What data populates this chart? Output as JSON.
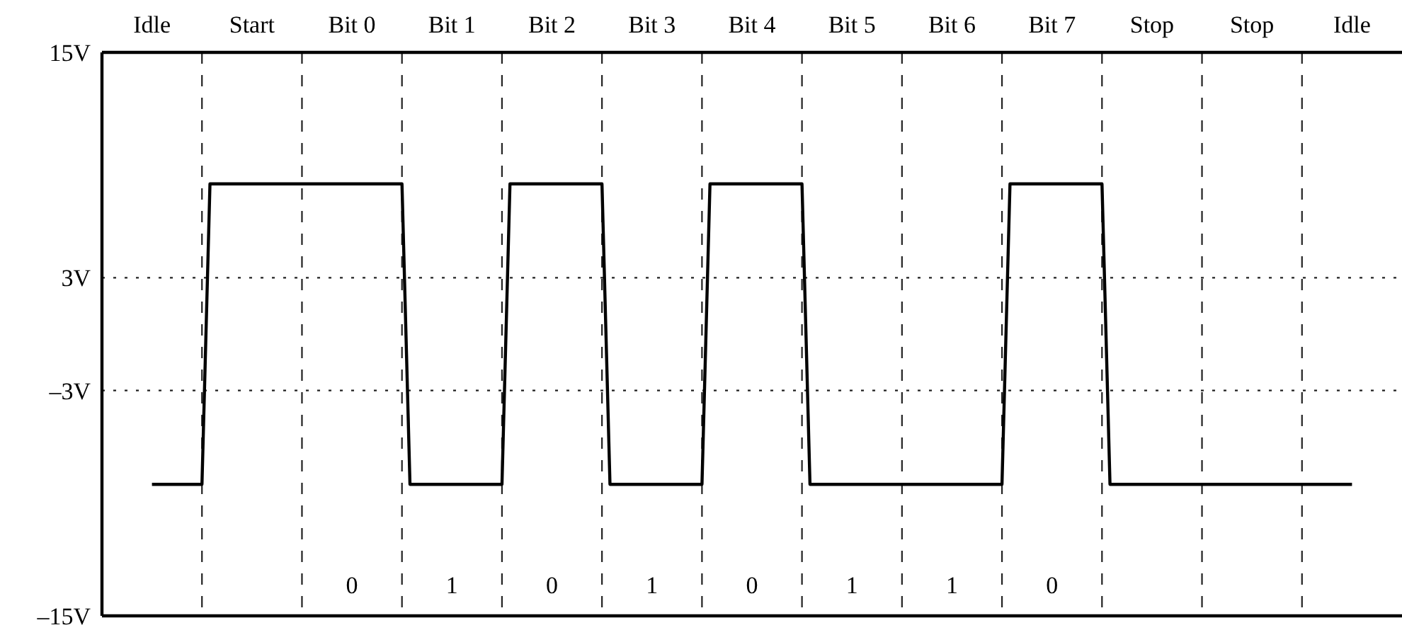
{
  "chart_data": {
    "type": "step",
    "categories": [
      "Idle",
      "Start",
      "Bit 0",
      "Bit 1",
      "Bit 2",
      "Bit 3",
      "Bit 4",
      "Bit 5",
      "Bit 6",
      "Bit 7",
      "Stop",
      "Stop",
      "Idle"
    ],
    "series": [
      {
        "color": "#000000",
        "values": [
          -8,
          8,
          8,
          -8,
          8,
          -8,
          8,
          -8,
          -8,
          8,
          -8,
          -8,
          -8
        ]
      }
    ],
    "ylim": [
      -15,
      15
    ],
    "yticks": [
      {
        "value": -15,
        "label": "–15V"
      },
      {
        "value": -3,
        "label": "–3V"
      },
      {
        "value": 3,
        "label": "3V"
      },
      {
        "value": 15,
        "label": "15V"
      }
    ],
    "grid": "x",
    "marker": "none",
    "line_style": "solid",
    "ref_lines": [
      {
        "axis": "y",
        "value": 3,
        "line_style": "dotted"
      },
      {
        "axis": "y",
        "value": -3,
        "line_style": "dotted"
      }
    ],
    "annotations": [
      "0",
      "1",
      "0",
      "1",
      "0",
      "1",
      "1",
      "0"
    ]
  }
}
